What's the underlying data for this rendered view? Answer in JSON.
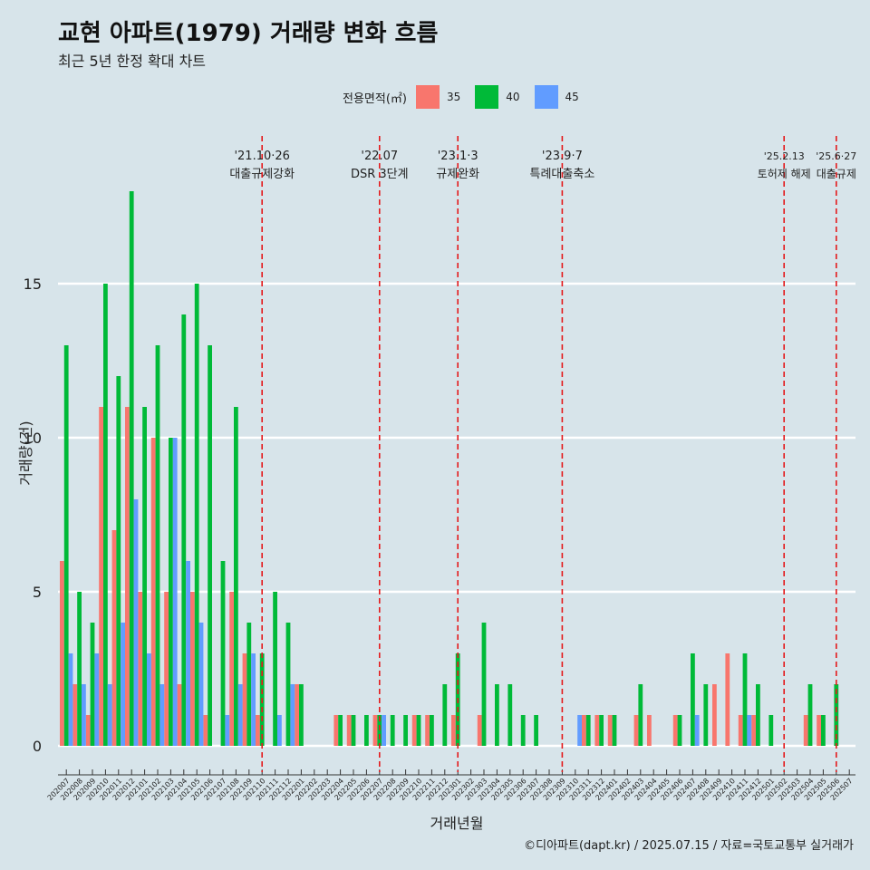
{
  "title": "교현 아파트(1979) 거래량 변화 흐름",
  "subtitle": "최근 5년 한정 확대 차트",
  "caption": "©디아파트(dapt.kr) / 2025.07.15 / 자료=국토교통부 실거래가",
  "legend": {
    "title": "전용면적(㎡)",
    "items": [
      {
        "label": "35",
        "color": "#f8766d"
      },
      {
        "label": "40",
        "color": "#00ba38"
      },
      {
        "label": "45",
        "color": "#619cff"
      }
    ]
  },
  "chart_data": {
    "type": "bar",
    "xlabel": "거래년월",
    "ylabel": "거래량(건)",
    "ylim": [
      0,
      19
    ],
    "yticks": [
      0,
      5,
      10,
      15
    ],
    "grid": true,
    "legend_position": "top",
    "categories": [
      "202007",
      "202008",
      "202009",
      "202010",
      "202011",
      "202012",
      "202101",
      "202102",
      "202103",
      "202104",
      "202105",
      "202106",
      "202107",
      "202108",
      "202109",
      "202110",
      "202111",
      "202112",
      "202201",
      "202202",
      "202203",
      "202204",
      "202205",
      "202206",
      "202207",
      "202208",
      "202209",
      "202210",
      "202211",
      "202212",
      "202301",
      "202302",
      "202303",
      "202304",
      "202305",
      "202306",
      "202307",
      "202308",
      "202309",
      "202310",
      "202311",
      "202312",
      "202401",
      "202402",
      "202403",
      "202404",
      "202405",
      "202406",
      "202407",
      "202408",
      "202409",
      "202410",
      "202411",
      "202412",
      "202501",
      "202502",
      "202503",
      "202504",
      "202505",
      "202506",
      "202507"
    ],
    "series": [
      {
        "name": "35",
        "color": "#f8766d",
        "values": [
          6,
          2,
          1,
          11,
          7,
          11,
          5,
          10,
          5,
          2,
          5,
          1,
          0,
          5,
          3,
          1,
          0,
          0,
          2,
          0,
          0,
          1,
          1,
          0,
          1,
          0,
          0,
          1,
          1,
          0,
          1,
          0,
          1,
          0,
          0,
          0,
          0,
          0,
          0,
          0,
          1,
          1,
          1,
          0,
          1,
          1,
          0,
          1,
          0,
          0,
          2,
          3,
          1,
          1,
          0,
          0,
          0,
          1,
          1,
          0,
          0
        ]
      },
      {
        "name": "40",
        "color": "#00ba38",
        "values": [
          13,
          5,
          4,
          15,
          12,
          18,
          11,
          13,
          10,
          14,
          15,
          13,
          6,
          11,
          4,
          3,
          5,
          4,
          2,
          0,
          0,
          1,
          1,
          1,
          1,
          1,
          1,
          1,
          1,
          2,
          3,
          0,
          4,
          2,
          2,
          1,
          1,
          0,
          0,
          0,
          1,
          1,
          1,
          0,
          2,
          0,
          0,
          1,
          3,
          2,
          0,
          0,
          3,
          2,
          1,
          0,
          0,
          2,
          1,
          2,
          0
        ]
      },
      {
        "name": "45",
        "color": "#619cff",
        "values": [
          3,
          2,
          3,
          2,
          4,
          8,
          3,
          2,
          10,
          6,
          4,
          0,
          1,
          2,
          3,
          0,
          1,
          2,
          0,
          0,
          0,
          0,
          0,
          0,
          1,
          0,
          0,
          0,
          0,
          0,
          0,
          0,
          0,
          0,
          0,
          0,
          0,
          0,
          0,
          1,
          0,
          0,
          0,
          0,
          0,
          0,
          0,
          0,
          1,
          0,
          0,
          0,
          1,
          0,
          0,
          0,
          0,
          0,
          0,
          0,
          0
        ]
      }
    ],
    "events": [
      {
        "index": 15,
        "date": "'21.10·26",
        "label": "대출규제강화"
      },
      {
        "index": 24,
        "date": "'22.07",
        "label": "DSR 3단계"
      },
      {
        "index": 30,
        "date": "'23.1·3",
        "label": "규제완화"
      },
      {
        "index": 38,
        "date": "'23.9·7",
        "label": "특례대출축소"
      },
      {
        "index": 55,
        "date": "'25.2.13",
        "label": "토허제 해제"
      },
      {
        "index": 59,
        "date": "'25.6·27",
        "label": "대출규제"
      }
    ]
  }
}
